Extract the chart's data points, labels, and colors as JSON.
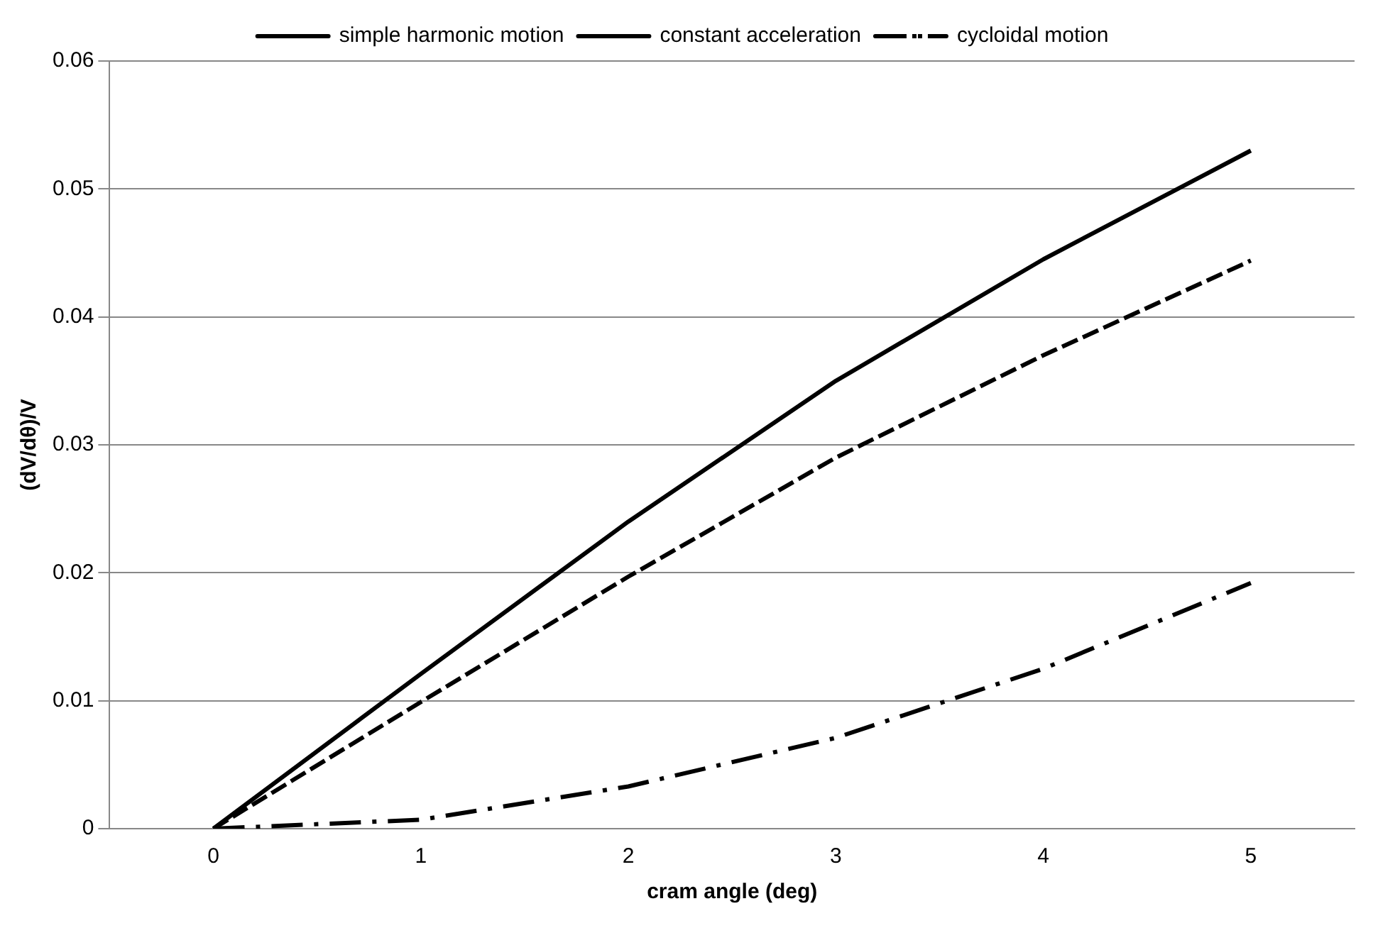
{
  "chart_data": {
    "type": "line",
    "xlabel": "cram angle (deg)",
    "ylabel": "(dV/dθ)/V",
    "categories": [
      "0",
      "1",
      "2",
      "3",
      "4",
      "5"
    ],
    "series": [
      {
        "name": "simple harmonic motion",
        "color": "#000000",
        "line_style": "solid",
        "values": [
          0,
          0.0121,
          0.024,
          0.035,
          0.0445,
          0.053
        ]
      },
      {
        "name": "constant acceleration",
        "color": "#000000",
        "line_style": "dashed",
        "values": [
          0,
          0.0099,
          0.0197,
          0.029,
          0.037,
          0.0444
        ]
      },
      {
        "name": "cycloidal motion",
        "color": "#000000",
        "line_style": "dashdot",
        "values": [
          0,
          0.0007,
          0.0033,
          0.0071,
          0.0125,
          0.0192
        ]
      }
    ],
    "ylim": [
      0,
      0.06
    ],
    "yticks": [
      0,
      0.01,
      0.02,
      0.03,
      0.04,
      0.05,
      0.06
    ],
    "grid": "y",
    "legend": "top",
    "marker": "none"
  }
}
